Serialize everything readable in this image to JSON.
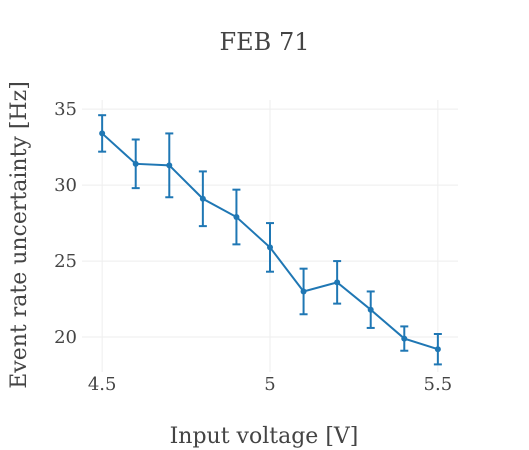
{
  "chart_data": {
    "type": "scatter",
    "title": "FEB 71",
    "xlabel": "Input voltage [V]",
    "ylabel": "Event rate uncertainty [Hz]",
    "xlim": [
      4.44,
      5.56
    ],
    "ylim": [
      17.7,
      35.6
    ],
    "x_ticks": [
      4.5,
      5,
      5.5
    ],
    "x_tick_labels": [
      "4.5",
      "5",
      "5.5"
    ],
    "y_ticks": [
      20,
      25,
      30,
      35
    ],
    "y_tick_labels": [
      "20",
      "25",
      "30",
      "35"
    ],
    "grid": true,
    "legend": "none",
    "color": "#1f77b4",
    "series": [
      {
        "x": [
          4.5,
          4.6,
          4.7,
          4.8,
          4.9,
          5.0,
          5.1,
          5.2,
          5.3,
          5.4,
          5.5
        ],
        "y": [
          33.4,
          31.4,
          31.3,
          29.1,
          27.9,
          25.9,
          23.0,
          23.6,
          21.8,
          19.9,
          19.2
        ],
        "error": [
          1.2,
          1.6,
          2.1,
          1.8,
          1.8,
          1.6,
          1.5,
          1.4,
          1.2,
          0.8,
          1.0
        ]
      }
    ]
  }
}
